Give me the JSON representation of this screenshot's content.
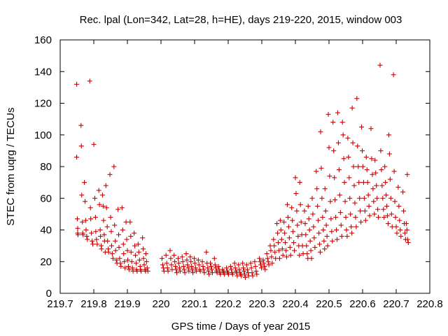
{
  "chart_data": {
    "type": "scatter",
    "title": "Rec. lpal (Lon=342, Lat=28, h=HE), days 219-220, 2015, window 003",
    "xlabel": "GPS time / Days of year 2015",
    "ylabel": "STEC from uqrg / TECUs",
    "xlim": [
      219.7,
      220.8
    ],
    "ylim": [
      0,
      160
    ],
    "xticks": [
      219.7,
      219.8,
      219.9,
      220,
      220.1,
      220.2,
      220.3,
      220.4,
      220.5,
      220.6,
      220.7,
      220.8
    ],
    "xtick_labels": [
      "219.7",
      "219.8",
      "219.9",
      "220",
      "220.1",
      "220.2",
      "220.3",
      "220.4",
      "220.5",
      "220.6",
      "220.7",
      "220.8"
    ],
    "yticks": [
      0,
      20,
      40,
      60,
      80,
      100,
      120,
      140,
      160
    ],
    "ytick_labels": [
      "0",
      "20",
      "40",
      "60",
      "80",
      "100",
      "120",
      "140",
      "160"
    ],
    "grid": false,
    "marker": "+",
    "color": "#cc0000",
    "points": [
      [
        219.749,
        132
      ],
      [
        219.749,
        86
      ],
      [
        219.751,
        47
      ],
      [
        219.752,
        41
      ],
      [
        219.752,
        38
      ],
      [
        219.753,
        37
      ],
      [
        219.762,
        106
      ],
      [
        219.763,
        93
      ],
      [
        219.764,
        62
      ],
      [
        219.766,
        45
      ],
      [
        219.767,
        38
      ],
      [
        219.768,
        37
      ],
      [
        219.772,
        70
      ],
      [
        219.774,
        58
      ],
      [
        219.776,
        46
      ],
      [
        219.777,
        40
      ],
      [
        219.779,
        36
      ],
      [
        219.781,
        34
      ],
      [
        219.788,
        134
      ],
      [
        219.79,
        54
      ],
      [
        219.791,
        47
      ],
      [
        219.793,
        38
      ],
      [
        219.795,
        33
      ],
      [
        219.797,
        31
      ],
      [
        219.8,
        94
      ],
      [
        219.803,
        60
      ],
      [
        219.805,
        48
      ],
      [
        219.806,
        39
      ],
      [
        219.808,
        34
      ],
      [
        219.81,
        31
      ],
      [
        219.815,
        65
      ],
      [
        219.817,
        56
      ],
      [
        219.819,
        40
      ],
      [
        219.82,
        36
      ],
      [
        219.822,
        30
      ],
      [
        219.823,
        28
      ],
      [
        219.826,
        62
      ],
      [
        219.828,
        55
      ],
      [
        219.829,
        46
      ],
      [
        219.831,
        37
      ],
      [
        219.832,
        33
      ],
      [
        219.834,
        26
      ],
      [
        219.836,
        68
      ],
      [
        219.838,
        54
      ],
      [
        219.84,
        42
      ],
      [
        219.841,
        33
      ],
      [
        219.843,
        28
      ],
      [
        219.844,
        26
      ],
      [
        219.848,
        75
      ],
      [
        219.85,
        48
      ],
      [
        219.852,
        39
      ],
      [
        219.853,
        30
      ],
      [
        219.855,
        25
      ],
      [
        219.857,
        22
      ],
      [
        219.86,
        80
      ],
      [
        219.862,
        43
      ],
      [
        219.864,
        33
      ],
      [
        219.865,
        27
      ],
      [
        219.867,
        21
      ],
      [
        219.869,
        19
      ],
      [
        219.872,
        53
      ],
      [
        219.874,
        37
      ],
      [
        219.875,
        29
      ],
      [
        219.877,
        22
      ],
      [
        219.879,
        19
      ],
      [
        219.881,
        17
      ],
      [
        219.884,
        54
      ],
      [
        219.886,
        40
      ],
      [
        219.888,
        31
      ],
      [
        219.889,
        25
      ],
      [
        219.891,
        20
      ],
      [
        219.893,
        16
      ],
      [
        219.896,
        45
      ],
      [
        219.898,
        34
      ],
      [
        219.9,
        27
      ],
      [
        219.901,
        21
      ],
      [
        219.903,
        17
      ],
      [
        219.905,
        15
      ],
      [
        219.908,
        45
      ],
      [
        219.91,
        36
      ],
      [
        219.911,
        26
      ],
      [
        219.913,
        20
      ],
      [
        219.915,
        16
      ],
      [
        219.917,
        14
      ],
      [
        219.92,
        38
      ],
      [
        219.922,
        30
      ],
      [
        219.924,
        24
      ],
      [
        219.926,
        19
      ],
      [
        219.927,
        15
      ],
      [
        219.929,
        14
      ],
      [
        219.932,
        31
      ],
      [
        219.934,
        26
      ],
      [
        219.936,
        21
      ],
      [
        219.938,
        17
      ],
      [
        219.939,
        15
      ],
      [
        219.941,
        14
      ],
      [
        219.945,
        35
      ],
      [
        219.947,
        28
      ],
      [
        219.948,
        22
      ],
      [
        219.95,
        18
      ],
      [
        219.952,
        15
      ],
      [
        219.954,
        14
      ],
      [
        219.955,
        25
      ],
      [
        219.957,
        20
      ],
      [
        219.959,
        16
      ],
      [
        219.961,
        14
      ],
      [
        220.003,
        22
      ],
      [
        220.005,
        18
      ],
      [
        220.007,
        16
      ],
      [
        220.009,
        14
      ],
      [
        220.015,
        24
      ],
      [
        220.017,
        19
      ],
      [
        220.019,
        16
      ],
      [
        220.021,
        14
      ],
      [
        220.027,
        27
      ],
      [
        220.029,
        22
      ],
      [
        220.031,
        18
      ],
      [
        220.033,
        15
      ],
      [
        220.039,
        24
      ],
      [
        220.041,
        20
      ],
      [
        220.043,
        17
      ],
      [
        220.045,
        15
      ],
      [
        220.047,
        13
      ],
      [
        220.051,
        22
      ],
      [
        220.053,
        19
      ],
      [
        220.055,
        16
      ],
      [
        220.057,
        14
      ],
      [
        220.063,
        23
      ],
      [
        220.065,
        20
      ],
      [
        220.067,
        17
      ],
      [
        220.069,
        15
      ],
      [
        220.071,
        13
      ],
      [
        220.075,
        25
      ],
      [
        220.077,
        21
      ],
      [
        220.079,
        18
      ],
      [
        220.081,
        16
      ],
      [
        220.083,
        14
      ],
      [
        220.087,
        23
      ],
      [
        220.089,
        20
      ],
      [
        220.091,
        17
      ],
      [
        220.093,
        15
      ],
      [
        220.095,
        13
      ],
      [
        220.099,
        22
      ],
      [
        220.101,
        19
      ],
      [
        220.103,
        16
      ],
      [
        220.105,
        14
      ],
      [
        220.111,
        21
      ],
      [
        220.113,
        18
      ],
      [
        220.115,
        15
      ],
      [
        220.117,
        14
      ],
      [
        220.123,
        20
      ],
      [
        220.125,
        17
      ],
      [
        220.127,
        15
      ],
      [
        220.129,
        13
      ],
      [
        220.135,
        26
      ],
      [
        220.137,
        19
      ],
      [
        220.139,
        16
      ],
      [
        220.141,
        14
      ],
      [
        220.143,
        12
      ],
      [
        220.147,
        19
      ],
      [
        220.149,
        17
      ],
      [
        220.151,
        15
      ],
      [
        220.153,
        13
      ],
      [
        220.159,
        22
      ],
      [
        220.161,
        18
      ],
      [
        220.163,
        16
      ],
      [
        220.165,
        14
      ],
      [
        220.167,
        13
      ],
      [
        220.171,
        17
      ],
      [
        220.173,
        15
      ],
      [
        220.175,
        13
      ],
      [
        220.177,
        12
      ],
      [
        220.183,
        15
      ],
      [
        220.185,
        14
      ],
      [
        220.187,
        13
      ],
      [
        220.189,
        12
      ],
      [
        220.195,
        16
      ],
      [
        220.197,
        14
      ],
      [
        220.199,
        13
      ],
      [
        220.201,
        12
      ],
      [
        220.207,
        17
      ],
      [
        220.209,
        15
      ],
      [
        220.211,
        13
      ],
      [
        220.213,
        12
      ],
      [
        220.219,
        19
      ],
      [
        220.221,
        16
      ],
      [
        220.223,
        14
      ],
      [
        220.225,
        13
      ],
      [
        220.227,
        11
      ],
      [
        220.231,
        18
      ],
      [
        220.233,
        15
      ],
      [
        220.235,
        13
      ],
      [
        220.237,
        12
      ],
      [
        220.239,
        11
      ],
      [
        220.243,
        19
      ],
      [
        220.245,
        16
      ],
      [
        220.247,
        14
      ],
      [
        220.249,
        12
      ],
      [
        220.251,
        10
      ],
      [
        220.255,
        18
      ],
      [
        220.257,
        15
      ],
      [
        220.259,
        13
      ],
      [
        220.261,
        11
      ],
      [
        220.267,
        19
      ],
      [
        220.269,
        16
      ],
      [
        220.271,
        13
      ],
      [
        220.273,
        11
      ],
      [
        220.279,
        20
      ],
      [
        220.281,
        17
      ],
      [
        220.283,
        14
      ],
      [
        220.285,
        12
      ],
      [
        220.293,
        22
      ],
      [
        220.295,
        20
      ],
      [
        220.297,
        18
      ],
      [
        220.299,
        16
      ],
      [
        220.304,
        21
      ],
      [
        220.306,
        19
      ],
      [
        220.308,
        17
      ],
      [
        220.31,
        15
      ],
      [
        220.315,
        25
      ],
      [
        220.317,
        22
      ],
      [
        220.319,
        20
      ],
      [
        220.321,
        18
      ],
      [
        220.325,
        30
      ],
      [
        220.327,
        27
      ],
      [
        220.329,
        23
      ],
      [
        220.331,
        19
      ],
      [
        220.335,
        34
      ],
      [
        220.337,
        30
      ],
      [
        220.339,
        26
      ],
      [
        220.341,
        22
      ],
      [
        220.345,
        44
      ],
      [
        220.347,
        38
      ],
      [
        220.349,
        32
      ],
      [
        220.351,
        27
      ],
      [
        220.353,
        22
      ],
      [
        220.355,
        46
      ],
      [
        220.357,
        40
      ],
      [
        220.359,
        34
      ],
      [
        220.361,
        28
      ],
      [
        220.363,
        24
      ],
      [
        220.366,
        45
      ],
      [
        220.368,
        38
      ],
      [
        220.37,
        32
      ],
      [
        220.372,
        27
      ],
      [
        220.374,
        23
      ],
      [
        220.376,
        56
      ],
      [
        220.378,
        48
      ],
      [
        220.38,
        42
      ],
      [
        220.382,
        35
      ],
      [
        220.384,
        29
      ],
      [
        220.386,
        24
      ],
      [
        220.389,
        54
      ],
      [
        220.391,
        46
      ],
      [
        220.393,
        39
      ],
      [
        220.395,
        32
      ],
      [
        220.397,
        27
      ],
      [
        220.4,
        73
      ],
      [
        220.402,
        63
      ],
      [
        220.404,
        52
      ],
      [
        220.406,
        43
      ],
      [
        220.408,
        36
      ],
      [
        220.41,
        30
      ],
      [
        220.412,
        24
      ],
      [
        220.413,
        70
      ],
      [
        220.415,
        56
      ],
      [
        220.417,
        45
      ],
      [
        220.419,
        37
      ],
      [
        220.421,
        30
      ],
      [
        220.423,
        25
      ],
      [
        220.427,
        52
      ],
      [
        220.429,
        44
      ],
      [
        220.431,
        37
      ],
      [
        220.433,
        30
      ],
      [
        220.435,
        25
      ],
      [
        220.437,
        22
      ],
      [
        220.438,
        55
      ],
      [
        220.44,
        47
      ],
      [
        220.442,
        40
      ],
      [
        220.444,
        33
      ],
      [
        220.446,
        27
      ],
      [
        220.448,
        22
      ],
      [
        220.45,
        60
      ],
      [
        220.452,
        50
      ],
      [
        220.454,
        42
      ],
      [
        220.456,
        35
      ],
      [
        220.458,
        29
      ],
      [
        220.462,
        77
      ],
      [
        220.464,
        66
      ],
      [
        220.466,
        55
      ],
      [
        220.468,
        46
      ],
      [
        220.47,
        38
      ],
      [
        220.472,
        31
      ],
      [
        220.474,
        26
      ],
      [
        220.475,
        102
      ],
      [
        220.477,
        79
      ],
      [
        220.479,
        60
      ],
      [
        220.481,
        48
      ],
      [
        220.483,
        40
      ],
      [
        220.485,
        33
      ],
      [
        220.487,
        28
      ],
      [
        220.488,
        66
      ],
      [
        220.49,
        52
      ],
      [
        220.492,
        43
      ],
      [
        220.494,
        36
      ],
      [
        220.496,
        30
      ],
      [
        220.498,
        113
      ],
      [
        220.5,
        92
      ],
      [
        220.502,
        74
      ],
      [
        220.504,
        58
      ],
      [
        220.506,
        47
      ],
      [
        220.508,
        39
      ],
      [
        220.51,
        33
      ],
      [
        220.512,
        108
      ],
      [
        220.514,
        90
      ],
      [
        220.516,
        73
      ],
      [
        220.518,
        59
      ],
      [
        220.52,
        48
      ],
      [
        220.522,
        40
      ],
      [
        220.524,
        34
      ],
      [
        220.526,
        114
      ],
      [
        220.528,
        95
      ],
      [
        220.53,
        78
      ],
      [
        220.532,
        62
      ],
      [
        220.534,
        51
      ],
      [
        220.536,
        43
      ],
      [
        220.538,
        36
      ],
      [
        220.54,
        108
      ],
      [
        220.542,
        100
      ],
      [
        220.544,
        85
      ],
      [
        220.546,
        70
      ],
      [
        220.548,
        58
      ],
      [
        220.55,
        48
      ],
      [
        220.552,
        40
      ],
      [
        220.554,
        36
      ],
      [
        220.556,
        98
      ],
      [
        220.558,
        86
      ],
      [
        220.56,
        73
      ],
      [
        220.562,
        60
      ],
      [
        220.564,
        50
      ],
      [
        220.566,
        42
      ],
      [
        220.568,
        38
      ],
      [
        220.569,
        117
      ],
      [
        220.571,
        95
      ],
      [
        220.573,
        80
      ],
      [
        220.575,
        68
      ],
      [
        220.577,
        57
      ],
      [
        220.579,
        48
      ],
      [
        220.581,
        42
      ],
      [
        220.583,
        123
      ],
      [
        220.585,
        93
      ],
      [
        220.587,
        80
      ],
      [
        220.589,
        70
      ],
      [
        220.591,
        60
      ],
      [
        220.593,
        52
      ],
      [
        220.595,
        45
      ],
      [
        220.597,
        105
      ],
      [
        220.599,
        90
      ],
      [
        220.601,
        80
      ],
      [
        220.603,
        70
      ],
      [
        220.605,
        60
      ],
      [
        220.607,
        52
      ],
      [
        220.609,
        46
      ],
      [
        220.611,
        86
      ],
      [
        220.613,
        78
      ],
      [
        220.615,
        70
      ],
      [
        220.617,
        62
      ],
      [
        220.619,
        55
      ],
      [
        220.621,
        49
      ],
      [
        220.625,
        104
      ],
      [
        220.627,
        85
      ],
      [
        220.629,
        75
      ],
      [
        220.631,
        66
      ],
      [
        220.633,
        58
      ],
      [
        220.635,
        50
      ],
      [
        220.637,
        84
      ],
      [
        220.639,
        76
      ],
      [
        220.641,
        68
      ],
      [
        220.643,
        60
      ],
      [
        220.645,
        53
      ],
      [
        220.647,
        48
      ],
      [
        220.652,
        144
      ],
      [
        220.654,
        90
      ],
      [
        220.656,
        78
      ],
      [
        220.658,
        68
      ],
      [
        220.66,
        60
      ],
      [
        220.662,
        53
      ],
      [
        220.664,
        48
      ],
      [
        220.666,
        80
      ],
      [
        220.668,
        70
      ],
      [
        220.67,
        62
      ],
      [
        220.672,
        55
      ],
      [
        220.674,
        49
      ],
      [
        220.676,
        44
      ],
      [
        220.678,
        100
      ],
      [
        220.68,
        88
      ],
      [
        220.682,
        72
      ],
      [
        220.684,
        60
      ],
      [
        220.686,
        50
      ],
      [
        220.688,
        42
      ],
      [
        220.692,
        138
      ],
      [
        220.694,
        77
      ],
      [
        220.696,
        58
      ],
      [
        220.698,
        48
      ],
      [
        220.7,
        42
      ],
      [
        220.702,
        38
      ],
      [
        220.706,
        67
      ],
      [
        220.708,
        55
      ],
      [
        220.71,
        46
      ],
      [
        220.712,
        40
      ],
      [
        220.714,
        36
      ],
      [
        220.72,
        64
      ],
      [
        220.722,
        52
      ],
      [
        220.724,
        44
      ],
      [
        220.726,
        38
      ],
      [
        220.728,
        34
      ],
      [
        220.73,
        44
      ],
      [
        220.732,
        40
      ],
      [
        220.733,
        75
      ],
      [
        220.734,
        34
      ],
      [
        220.736,
        32
      ]
    ]
  }
}
